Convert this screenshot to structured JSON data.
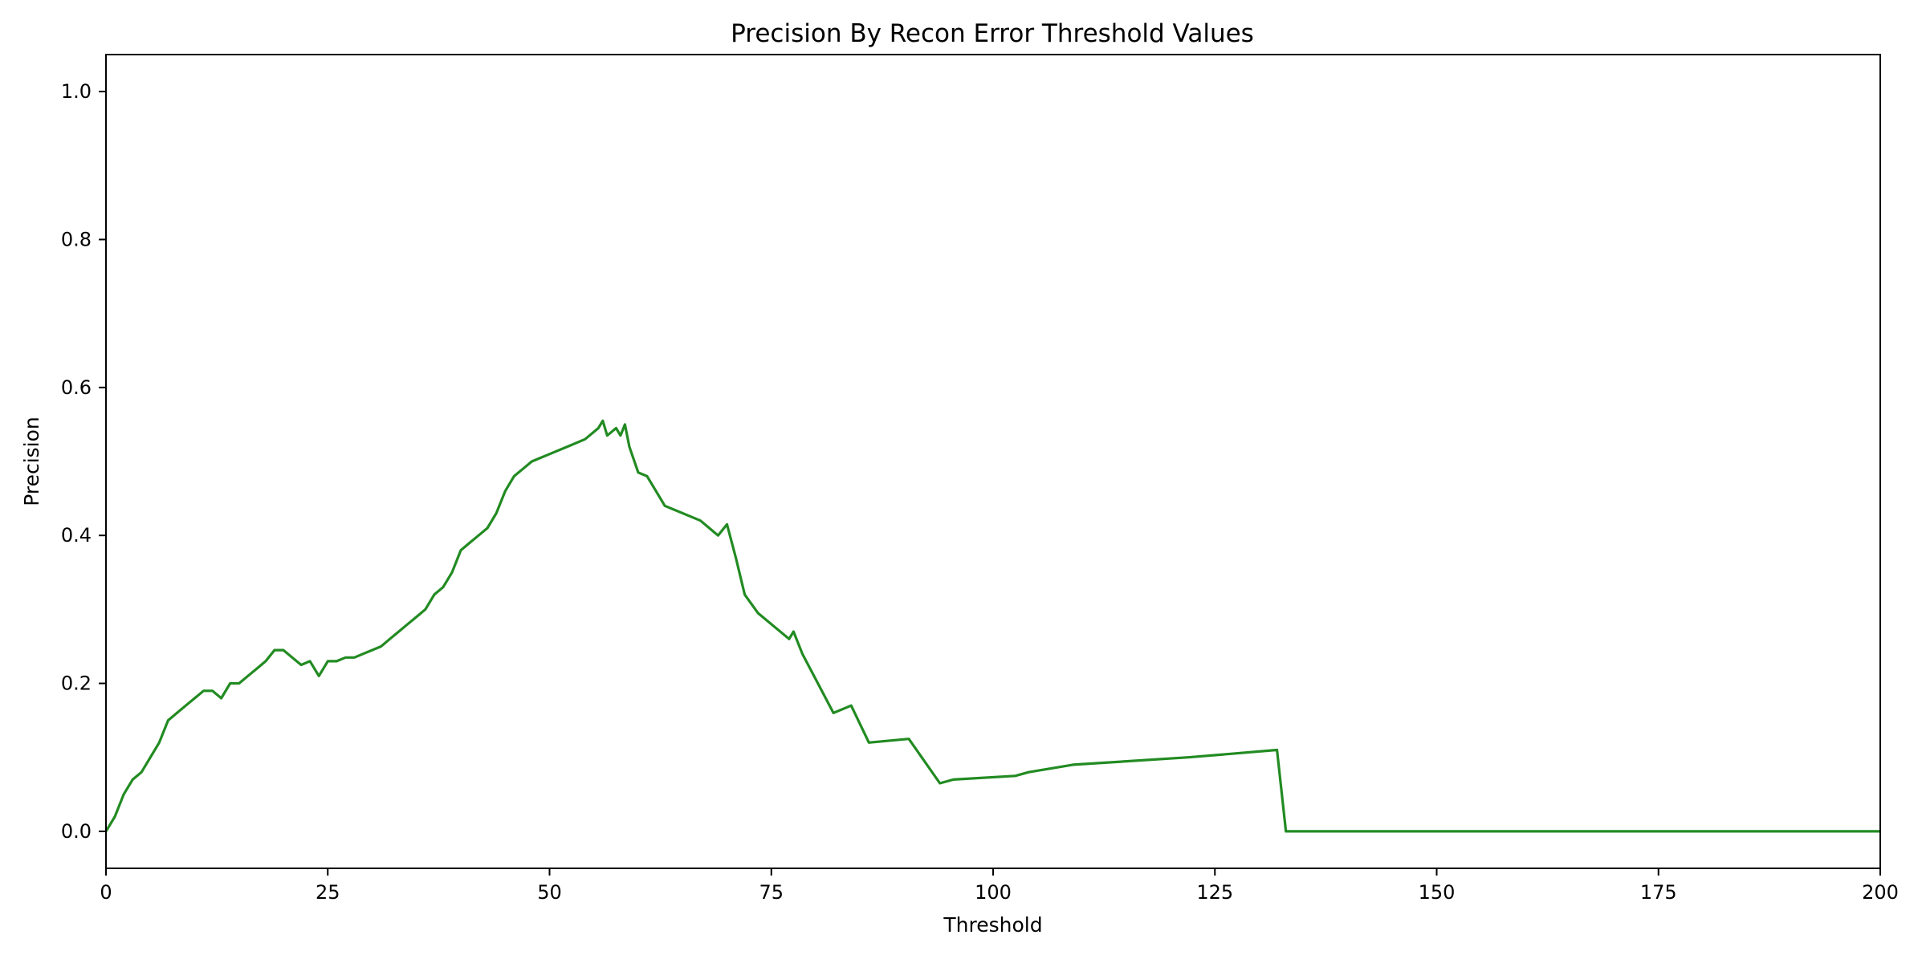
{
  "chart_data": {
    "type": "line",
    "title": "Precision By Recon Error Threshold Values",
    "xlabel": "Threshold",
    "ylabel": "Precision",
    "xlim": [
      0,
      200
    ],
    "ylim": [
      -0.05,
      1.05
    ],
    "xticks": [
      0,
      25,
      50,
      75,
      100,
      125,
      150,
      175,
      200
    ],
    "yticks": [
      0.0,
      0.2,
      0.4,
      0.6,
      0.8,
      1.0
    ],
    "ytick_labels": [
      "0.0",
      "0.2",
      "0.4",
      "0.6",
      "0.8",
      "1.0"
    ],
    "grid": false,
    "legend": false,
    "colors": {
      "line": "#228b22"
    },
    "series": [
      {
        "x": [
          0,
          1,
          2,
          3,
          4,
          5,
          6,
          7,
          8,
          9,
          10,
          11,
          12,
          13,
          14,
          15,
          16,
          17,
          18,
          19,
          20,
          21,
          22,
          23,
          24,
          25,
          26,
          27,
          28,
          29,
          30,
          31,
          32,
          33,
          34,
          35,
          36,
          37,
          38,
          39,
          40,
          41,
          42,
          43,
          44,
          45,
          46,
          47,
          48,
          49,
          50,
          52,
          54,
          55.5,
          56.0,
          56.5,
          57.5,
          58.0,
          58.5,
          59.0,
          60.0,
          61.0,
          62.0,
          63.0,
          67.0,
          69.0,
          70.0,
          71.0,
          72.0,
          73.5,
          77.0,
          77.5,
          78.5,
          82.0,
          84.0,
          86.0,
          90.5,
          94.0,
          95.5,
          102.5,
          104.0,
          109.0,
          122.0,
          132.0,
          133.0,
          200
        ],
        "y": [
          0.0,
          0.02,
          0.05,
          0.07,
          0.08,
          0.1,
          0.12,
          0.15,
          0.16,
          0.17,
          0.18,
          0.19,
          0.19,
          0.18,
          0.2,
          0.2,
          0.21,
          0.22,
          0.23,
          0.245,
          0.245,
          0.235,
          0.225,
          0.23,
          0.21,
          0.23,
          0.23,
          0.235,
          0.235,
          0.24,
          0.245,
          0.25,
          0.26,
          0.27,
          0.28,
          0.29,
          0.3,
          0.32,
          0.33,
          0.35,
          0.38,
          0.39,
          0.4,
          0.41,
          0.43,
          0.46,
          0.48,
          0.49,
          0.5,
          0.505,
          0.51,
          0.52,
          0.53,
          0.545,
          0.555,
          0.535,
          0.545,
          0.535,
          0.55,
          0.52,
          0.485,
          0.48,
          0.46,
          0.44,
          0.42,
          0.4,
          0.415,
          0.37,
          0.32,
          0.295,
          0.26,
          0.27,
          0.24,
          0.16,
          0.17,
          0.12,
          0.125,
          0.065,
          0.07,
          0.075,
          0.08,
          0.09,
          0.1,
          0.11,
          0.0,
          0.0
        ]
      }
    ]
  }
}
